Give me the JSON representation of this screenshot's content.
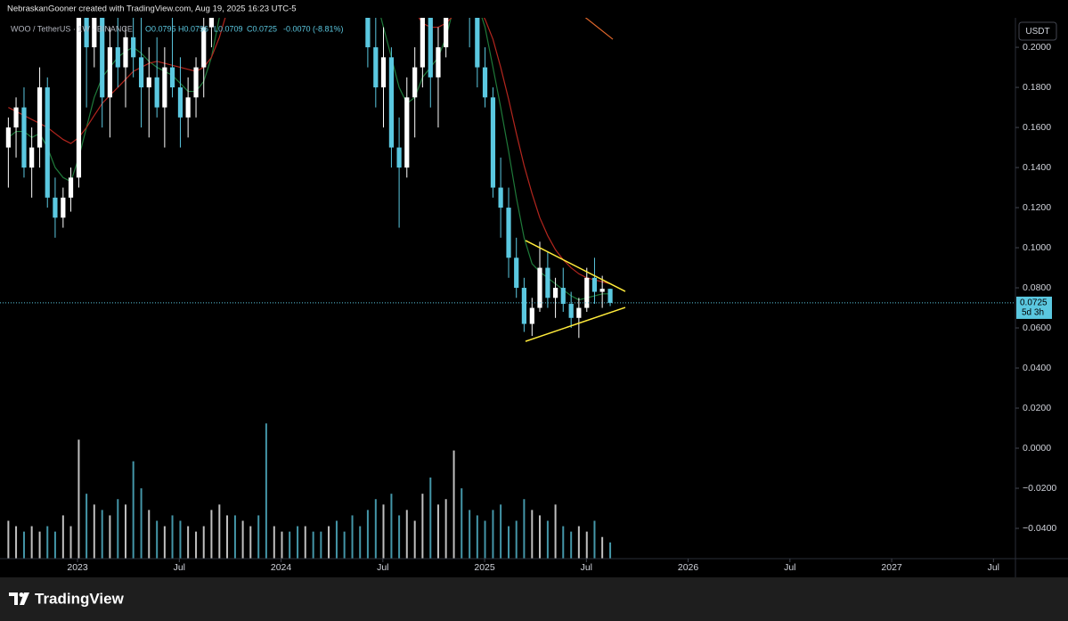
{
  "header": {
    "credit": "NebraskanGooner created with TradingView.com, Aug 19, 2025 16:23 UTC-5"
  },
  "legend": {
    "symbol": "WOO / TetherUS · 1W · BINANCE",
    "open": "O0.0795",
    "high": "H0.0796",
    "low": "L0.0709",
    "close": "C0.0725",
    "change": "-0.0070 (-8.81%)"
  },
  "currency_button": "USDT",
  "countdown": "5d 3h",
  "footer": {
    "brand": "TradingView"
  },
  "chart_data": {
    "type": "candlestick",
    "up_color": "#ffffff",
    "down_color": "#5bc8e0",
    "x": [
      2022.66,
      2022.698,
      2022.737,
      2022.775,
      2022.814,
      2022.852,
      2022.89,
      2022.929,
      2022.967,
      2023.006,
      2023.044,
      2023.082,
      2023.121,
      2023.159,
      2023.198,
      2023.236,
      2023.274,
      2023.313,
      2023.351,
      2023.39,
      2023.428,
      2023.466,
      2023.505,
      2023.543,
      2023.582,
      2023.62,
      2023.658,
      2023.697,
      2023.735,
      2023.774,
      2023.812,
      2023.85,
      2023.889,
      2023.927,
      2023.966,
      2024.004,
      2024.042,
      2024.081,
      2024.119,
      2024.158,
      2024.196,
      2024.234,
      2024.273,
      2024.311,
      2024.35,
      2024.388,
      2024.426,
      2024.465,
      2024.503,
      2024.542,
      2024.58,
      2024.618,
      2024.657,
      2024.695,
      2024.734,
      2024.772,
      2024.81,
      2024.849,
      2024.887,
      2024.926,
      2024.964,
      2025.002,
      2025.041,
      2025.079,
      2025.118,
      2025.156,
      2025.194,
      2025.233,
      2025.271,
      2025.31,
      2025.348,
      2025.386,
      2025.425,
      2025.463,
      2025.502,
      2025.54,
      2025.578,
      2025.617
    ],
    "open": [
      0.15,
      0.16,
      0.17,
      0.14,
      0.15,
      0.18,
      0.125,
      0.115,
      0.125,
      0.135,
      0.22,
      0.2,
      0.23,
      0.175,
      0.2,
      0.19,
      0.205,
      0.195,
      0.18,
      0.185,
      0.17,
      0.19,
      0.18,
      0.165,
      0.175,
      0.19,
      0.21,
      0.24,
      0.29,
      0.33,
      0.31,
      0.34,
      0.4,
      0.38,
      0.35,
      0.37,
      0.43,
      0.4,
      0.34,
      0.36,
      0.33,
      0.29,
      0.31,
      0.28,
      0.26,
      0.25,
      0.23,
      0.2,
      0.18,
      0.195,
      0.15,
      0.14,
      0.175,
      0.19,
      0.225,
      0.185,
      0.2,
      0.25,
      0.28,
      0.26,
      0.215,
      0.19,
      0.175,
      0.13,
      0.12,
      0.095,
      0.08,
      0.062,
      0.07,
      0.09,
      0.075,
      0.08,
      0.072,
      0.065,
      0.07,
      0.085,
      0.078,
      0.0795
    ],
    "high": [
      0.165,
      0.175,
      0.18,
      0.16,
      0.19,
      0.185,
      0.135,
      0.13,
      0.14,
      0.23,
      0.26,
      0.235,
      0.24,
      0.21,
      0.24,
      0.21,
      0.23,
      0.215,
      0.2,
      0.205,
      0.2,
      0.22,
      0.195,
      0.185,
      0.195,
      0.23,
      0.25,
      0.3,
      0.35,
      0.38,
      0.36,
      0.42,
      0.46,
      0.4,
      0.39,
      0.45,
      0.48,
      0.42,
      0.38,
      0.4,
      0.35,
      0.33,
      0.34,
      0.3,
      0.29,
      0.27,
      0.25,
      0.22,
      0.21,
      0.2,
      0.165,
      0.185,
      0.2,
      0.24,
      0.235,
      0.21,
      0.26,
      0.3,
      0.31,
      0.28,
      0.225,
      0.2,
      0.18,
      0.145,
      0.13,
      0.105,
      0.085,
      0.075,
      0.103,
      0.098,
      0.085,
      0.09,
      0.078,
      0.075,
      0.09,
      0.095,
      0.086,
      0.0796
    ],
    "low": [
      0.13,
      0.145,
      0.135,
      0.125,
      0.14,
      0.12,
      0.105,
      0.11,
      0.118,
      0.13,
      0.17,
      0.19,
      0.16,
      0.155,
      0.18,
      0.17,
      0.185,
      0.16,
      0.155,
      0.165,
      0.15,
      0.175,
      0.15,
      0.155,
      0.165,
      0.175,
      0.2,
      0.23,
      0.27,
      0.3,
      0.29,
      0.33,
      0.36,
      0.32,
      0.33,
      0.36,
      0.38,
      0.33,
      0.3,
      0.32,
      0.27,
      0.26,
      0.27,
      0.24,
      0.23,
      0.215,
      0.19,
      0.17,
      0.16,
      0.14,
      0.11,
      0.135,
      0.155,
      0.18,
      0.17,
      0.16,
      0.195,
      0.23,
      0.24,
      0.2,
      0.18,
      0.17,
      0.125,
      0.105,
      0.085,
      0.075,
      0.058,
      0.056,
      0.068,
      0.07,
      0.065,
      0.068,
      0.06,
      0.055,
      0.068,
      0.072,
      0.07,
      0.0709
    ],
    "close": [
      0.16,
      0.17,
      0.14,
      0.15,
      0.18,
      0.125,
      0.115,
      0.125,
      0.135,
      0.22,
      0.2,
      0.23,
      0.175,
      0.2,
      0.19,
      0.205,
      0.195,
      0.18,
      0.185,
      0.17,
      0.19,
      0.18,
      0.165,
      0.175,
      0.19,
      0.21,
      0.24,
      0.29,
      0.33,
      0.31,
      0.34,
      0.4,
      0.38,
      0.35,
      0.37,
      0.43,
      0.4,
      0.34,
      0.36,
      0.33,
      0.29,
      0.31,
      0.28,
      0.26,
      0.25,
      0.23,
      0.2,
      0.18,
      0.195,
      0.15,
      0.14,
      0.175,
      0.19,
      0.225,
      0.185,
      0.2,
      0.25,
      0.28,
      0.26,
      0.215,
      0.19,
      0.175,
      0.13,
      0.12,
      0.095,
      0.08,
      0.062,
      0.07,
      0.09,
      0.075,
      0.08,
      0.072,
      0.065,
      0.07,
      0.085,
      0.078,
      0.0795,
      0.0725
    ],
    "volume": [
      7,
      6,
      5,
      6,
      5,
      6,
      5,
      8,
      6,
      22,
      12,
      10,
      9,
      8,
      11,
      10,
      18,
      13,
      9,
      7,
      6,
      8,
      7,
      6,
      5,
      6,
      9,
      10,
      8,
      8,
      7,
      6,
      8,
      25,
      6,
      5,
      5,
      6,
      6,
      5,
      5,
      6,
      7,
      5,
      8,
      6,
      9,
      11,
      10,
      12,
      8,
      9,
      7,
      12,
      15,
      10,
      11,
      20,
      13,
      9,
      8,
      7,
      9,
      10,
      6,
      7,
      11,
      9,
      8,
      7,
      10,
      6,
      5,
      6,
      5,
      7,
      4,
      3
    ],
    "series": [
      {
        "color": "#1f7a3a",
        "values": [
          0.155,
          0.158,
          0.158,
          0.155,
          0.157,
          0.15,
          0.14,
          0.135,
          0.133,
          0.145,
          0.16,
          0.175,
          0.185,
          0.19,
          0.195,
          0.198,
          0.2,
          0.197,
          0.193,
          0.19,
          0.188,
          0.186,
          0.182,
          0.178,
          0.178,
          0.183,
          0.195,
          0.215,
          0.235,
          0.255,
          0.275,
          0.3,
          0.32,
          0.335,
          0.35,
          0.365,
          0.375,
          0.37,
          0.365,
          0.355,
          0.34,
          0.325,
          0.31,
          0.295,
          0.28,
          0.265,
          0.245,
          0.225,
          0.21,
          0.195,
          0.18,
          0.172,
          0.175,
          0.185,
          0.19,
          0.195,
          0.205,
          0.22,
          0.23,
          0.23,
          0.222,
          0.21,
          0.19,
          0.17,
          0.148,
          0.125,
          0.105,
          0.092,
          0.088,
          0.085,
          0.082,
          0.079,
          0.076,
          0.074,
          0.075,
          0.076,
          0.077,
          0.077
        ]
      },
      {
        "color": "#b3261e",
        "values": [
          0.17,
          0.168,
          0.166,
          0.164,
          0.162,
          0.16,
          0.157,
          0.154,
          0.152,
          0.155,
          0.16,
          0.166,
          0.172,
          0.176,
          0.18,
          0.184,
          0.188,
          0.19,
          0.192,
          0.193,
          0.192,
          0.191,
          0.19,
          0.189,
          0.188,
          0.19,
          0.195,
          0.205,
          0.218,
          0.232,
          0.248,
          0.265,
          0.282,
          0.298,
          0.312,
          0.325,
          0.337,
          0.346,
          0.352,
          0.355,
          0.354,
          0.35,
          0.343,
          0.333,
          0.322,
          0.31,
          0.296,
          0.28,
          0.265,
          0.25,
          0.237,
          0.226,
          0.218,
          0.212,
          0.21,
          0.21,
          0.212,
          0.216,
          0.22,
          0.222,
          0.22,
          0.214,
          0.204,
          0.19,
          0.174,
          0.157,
          0.141,
          0.127,
          0.115,
          0.106,
          0.099,
          0.094,
          0.09,
          0.087,
          0.085,
          0.084,
          0.083,
          0.082
        ]
      },
      {
        "color": "#e0672b",
        "x": [
          2025.486,
          2025.63
        ],
        "values": [
          0.2156,
          0.204
        ]
      }
    ],
    "trendlines": [
      {
        "color": "#ffeb3b",
        "x": [
          2025.201,
          2025.691
        ],
        "y": [
          0.1036,
          0.0782
        ]
      },
      {
        "color": "#ffeb3b",
        "x": [
          2025.201,
          2025.691
        ],
        "y": [
          0.0533,
          0.0702
        ]
      }
    ],
    "xlim": [
      2022.619,
      2027.608
    ],
    "xticks": [
      {
        "value": 2023,
        "label": "2023"
      },
      {
        "value": 2023.5,
        "label": "Jul"
      },
      {
        "value": 2024,
        "label": "2024"
      },
      {
        "value": 2024.5,
        "label": "Jul"
      },
      {
        "value": 2025,
        "label": "2025"
      },
      {
        "value": 2025.5,
        "label": "Jul"
      },
      {
        "value": 2026,
        "label": "2026"
      },
      {
        "value": 2026.5,
        "label": "Jul"
      },
      {
        "value": 2027,
        "label": "2027"
      },
      {
        "value": 2027.5,
        "label": "Jul"
      }
    ],
    "ylim": [
      -0.0551,
      0.2147
    ],
    "yticks": [
      {
        "value": 0.2,
        "label": "0.2000"
      },
      {
        "value": 0.18,
        "label": "0.1800"
      },
      {
        "value": 0.16,
        "label": "0.1600"
      },
      {
        "value": 0.14,
        "label": "0.1400"
      },
      {
        "value": 0.12,
        "label": "0.1200"
      },
      {
        "value": 0.1,
        "label": "0.1000"
      },
      {
        "value": 0.08,
        "label": "0.0800"
      },
      {
        "value": 0.06,
        "label": "0.0600"
      },
      {
        "value": 0.04,
        "label": "0.0400"
      },
      {
        "value": 0.02,
        "label": "0.0200"
      },
      {
        "value": 0,
        "label": "0.0000"
      },
      {
        "value": -0.02,
        "label": "−0.0200"
      },
      {
        "value": -0.04,
        "label": "−0.0400"
      }
    ],
    "y2lim": [
      0,
      100
    ]
  }
}
